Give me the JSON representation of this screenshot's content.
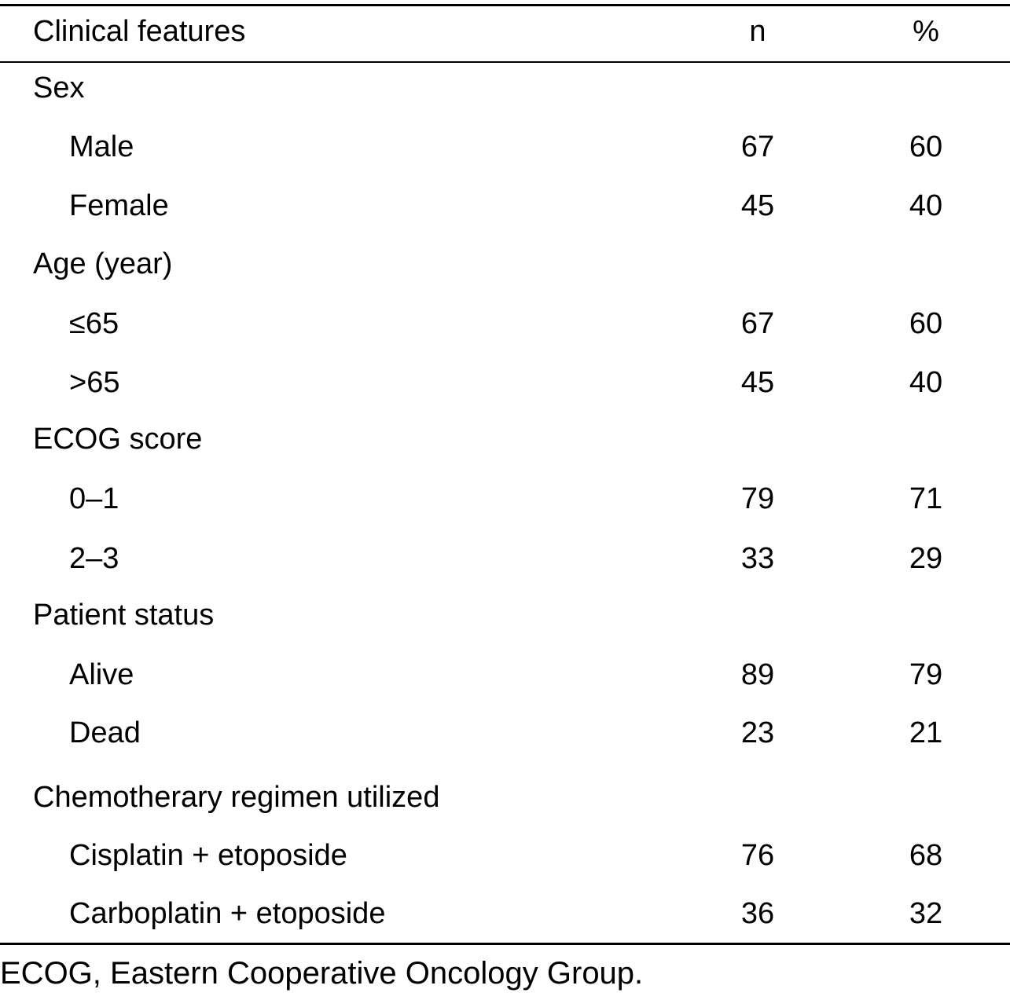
{
  "table": {
    "header": {
      "col1": "Clinical features",
      "col2": "n",
      "col3": "%"
    },
    "rows": [
      {
        "label": "Sex",
        "n": "",
        "pct": ""
      },
      {
        "label": "Male",
        "n": "67",
        "pct": "60"
      },
      {
        "label": "Female",
        "n": "45",
        "pct": "40"
      },
      {
        "label": "Age (year)",
        "n": "",
        "pct": ""
      },
      {
        "label": "≤65",
        "n": "67",
        "pct": "60"
      },
      {
        "label": ">65",
        "n": "45",
        "pct": "40"
      },
      {
        "label": "ECOG score",
        "n": "",
        "pct": ""
      },
      {
        "label": "0–1",
        "n": "79",
        "pct": "71"
      },
      {
        "label": "2–3",
        "n": "33",
        "pct": "29"
      },
      {
        "label": "Patient status",
        "n": "",
        "pct": ""
      },
      {
        "label": "Alive",
        "n": "89",
        "pct": "79"
      },
      {
        "label": "Dead",
        "n": "23",
        "pct": "21"
      },
      {
        "label": "Chemotherary regimen utilized",
        "n": "",
        "pct": ""
      },
      {
        "label": "Cisplatin + etoposide",
        "n": "76",
        "pct": "68"
      },
      {
        "label": "Carboplatin + etoposide",
        "n": "36",
        "pct": "32"
      }
    ]
  },
  "footnote": "ECOG, Eastern Cooperative Oncology Group."
}
